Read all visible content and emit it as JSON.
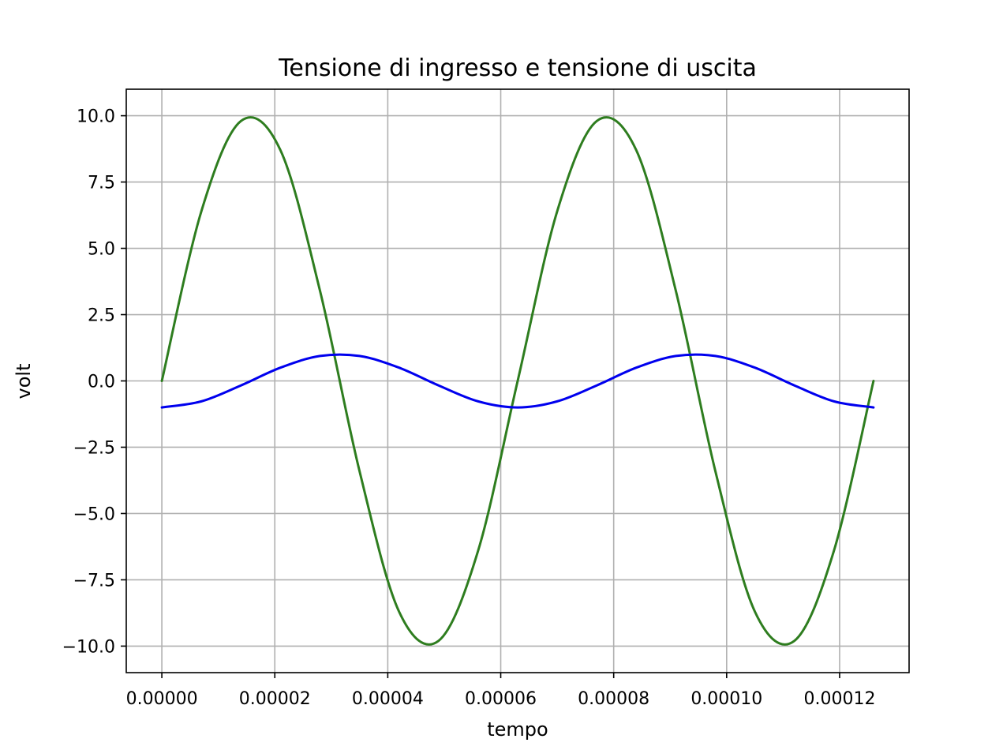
{
  "chart_data": {
    "type": "line",
    "title": "Tensione di ingresso e tensione di uscita",
    "xlabel": "tempo",
    "ylabel": "volt",
    "xlim": [
      -6.3e-06,
      0.0001323
    ],
    "ylim": [
      -11,
      11
    ],
    "x_ticks": [
      0,
      2e-05,
      4e-05,
      6e-05,
      8e-05,
      0.0001,
      0.00012
    ],
    "x_tick_labels": [
      "0.00000",
      "0.00002",
      "0.00004",
      "0.00006",
      "0.00008",
      "0.00010",
      "0.00012"
    ],
    "y_ticks": [
      10,
      7.5,
      5,
      2.5,
      0,
      -2.5,
      -5,
      -7.5,
      -10
    ],
    "y_tick_labels": [
      "10.0",
      "7.5",
      "5.0",
      "2.5",
      "0.0",
      "−2.5",
      "−5.0",
      "−7.5",
      "−10.0"
    ],
    "grid": true,
    "x": [
      0,
      7e-06,
      1.4e-05,
      2.1e-05,
      2.8e-05,
      3.5e-05,
      4.2e-05,
      4.9e-05,
      5.6e-05,
      6.3e-05,
      7e-05,
      7.7e-05,
      8.4e-05,
      9.1e-05,
      9.8e-05,
      0.000105,
      0.000112,
      0.000119,
      0.000126
    ],
    "series": [
      {
        "color": "#2e7d1f",
        "values": [
          0,
          6.4,
          9.8,
          8.7,
          3.4,
          -3.4,
          -8.7,
          -9.8,
          -6.4,
          0,
          6.4,
          9.8,
          8.7,
          3.4,
          -3.4,
          -8.7,
          -9.8,
          -6.4,
          0
        ]
      },
      {
        "color": "#0000ee",
        "values": [
          -1,
          -0.77,
          -0.17,
          0.5,
          0.94,
          0.94,
          0.5,
          -0.17,
          -0.77,
          -1,
          -0.77,
          -0.17,
          0.5,
          0.94,
          0.94,
          0.5,
          -0.17,
          -0.77,
          -1
        ]
      }
    ]
  }
}
